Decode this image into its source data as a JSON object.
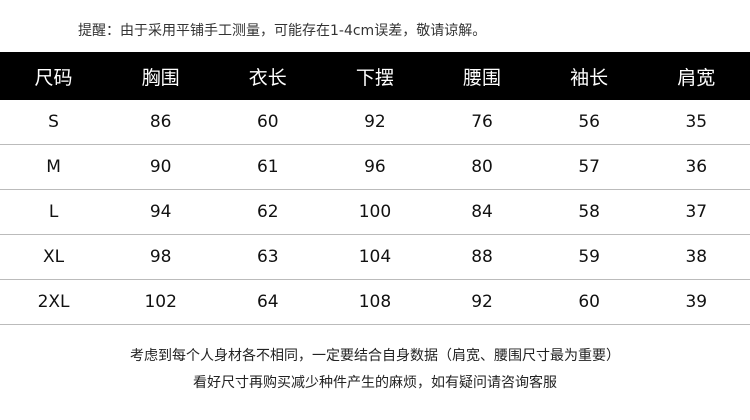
{
  "header": {
    "note": "提醒：由于采用平铺手工测量，可能存在1-4cm误差，敬请谅解。"
  },
  "table": {
    "columns": [
      "尺码",
      "胸围",
      "衣长",
      "下摆",
      "腰围",
      "袖长",
      "肩宽"
    ],
    "rows": [
      [
        "S",
        "86",
        "60",
        "92",
        "76",
        "56",
        "35"
      ],
      [
        "M",
        "90",
        "61",
        "96",
        "80",
        "57",
        "36"
      ],
      [
        "L",
        "94",
        "62",
        "100",
        "84",
        "58",
        "37"
      ],
      [
        "XL",
        "98",
        "63",
        "104",
        "88",
        "59",
        "38"
      ],
      [
        "2XL",
        "102",
        "64",
        "108",
        "92",
        "60",
        "39"
      ]
    ]
  },
  "footer": {
    "lines": [
      "考虑到每个人身材各不相同，一定要结合自身数据（肩宽、腰围尺寸最为重要）",
      "看好尺寸再购买减少种件产生的麻烦，如有疑问请咨询客服"
    ]
  }
}
